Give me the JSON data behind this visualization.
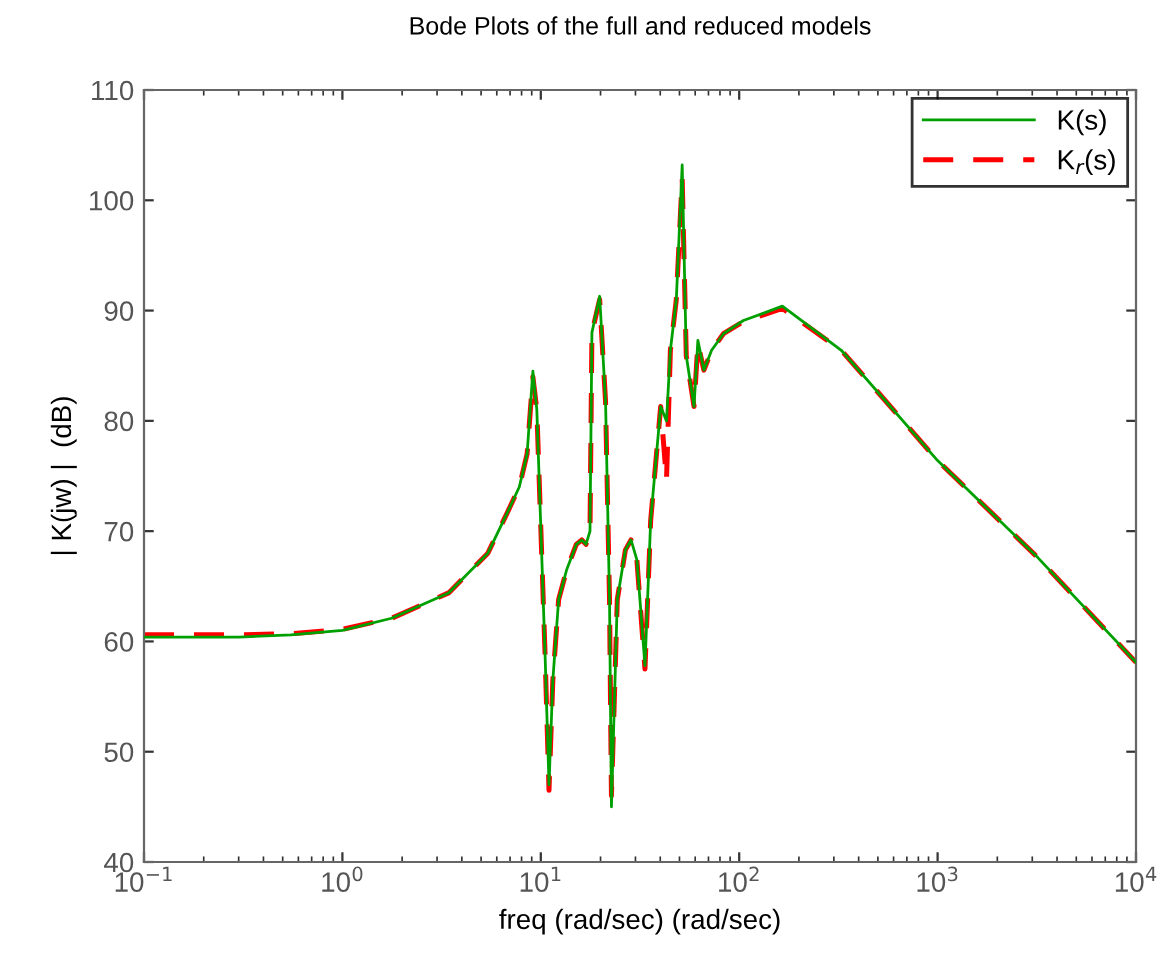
{
  "chart_data": {
    "type": "line",
    "title": "Bode Plots of the full and reduced models",
    "xlabel": "freq (rad/sec) (rad/sec)",
    "ylabel": "| K(jw) |  (dB)",
    "log": "x",
    "grid": false,
    "legend": "top right",
    "xlim": [
      0.1,
      10000
    ],
    "xticks": [
      {
        "value": 0.1,
        "label": "10$^{−1}$"
      },
      {
        "value": 1,
        "label": "10$^{0}$"
      },
      {
        "value": 10,
        "label": "10$^{1}$"
      },
      {
        "value": 100,
        "label": "10$^{2}$"
      },
      {
        "value": 1000,
        "label": "10$^{3}$"
      },
      {
        "value": 10000,
        "label": "10$^{4}$"
      }
    ],
    "ylim": [
      40,
      110
    ],
    "yticks": [
      40,
      50,
      60,
      70,
      80,
      90,
      100,
      110
    ],
    "x": [
      0.1,
      0.3,
      0.55,
      1,
      1.77,
      3.43,
      5.41,
      6.79,
      7.79,
      8.53,
      9.12,
      9.55,
      10.5,
      11.0,
      11.5,
      12.3,
      13.5,
      15.1,
      16.1,
      16.9,
      17.7,
      18.1,
      19.8,
      21.2,
      22.2,
      22.7,
      24.3,
      26.7,
      28.5,
      30.5,
      33.5,
      35.8,
      40.2,
      43.0,
      45.0,
      48.2,
      51.6,
      54.1,
      59.2,
      61.9,
      66.4,
      72.6,
      83.3,
      105,
      165,
      327,
      1000,
      3200,
      10000
    ],
    "series": [
      {
        "name": "K(s)",
        "color": "#00a000",
        "line_style": "solid",
        "values": [
          60.4,
          60.4,
          60.6,
          61.0,
          62.1,
          64.4,
          68.0,
          71.7,
          74.0,
          77.0,
          84.5,
          81.0,
          59.0,
          47.0,
          56.5,
          63.8,
          66.5,
          68.8,
          69.2,
          68.8,
          70.0,
          88.0,
          91.3,
          81.8,
          63.8,
          45.0,
          63.8,
          68.3,
          69.2,
          67.4,
          57.8,
          71.0,
          81.3,
          80.0,
          86.4,
          91.0,
          103.2,
          85.9,
          81.3,
          87.3,
          84.6,
          86.4,
          87.9,
          89.1,
          90.4,
          86.4,
          76.4,
          67.6,
          58.1
        ]
      },
      {
        "name": "K$_{r}$(s)",
        "color": "#ff0000",
        "line_style": "dashed",
        "values": [
          60.6,
          60.6,
          60.7,
          61.1,
          62.1,
          64.4,
          68.0,
          71.7,
          74.0,
          77.0,
          84.0,
          81.0,
          59.0,
          46.5,
          56.5,
          63.8,
          66.5,
          68.8,
          69.2,
          68.8,
          70.0,
          88.0,
          91.0,
          81.8,
          63.8,
          46.0,
          63.8,
          68.3,
          69.2,
          67.4,
          57.5,
          71.0,
          81.3,
          74.6,
          86.4,
          91.0,
          102.0,
          85.9,
          81.3,
          87.0,
          84.6,
          86.4,
          87.9,
          89.0,
          90.2,
          86.4,
          76.4,
          67.6,
          58.1
        ]
      }
    ]
  }
}
